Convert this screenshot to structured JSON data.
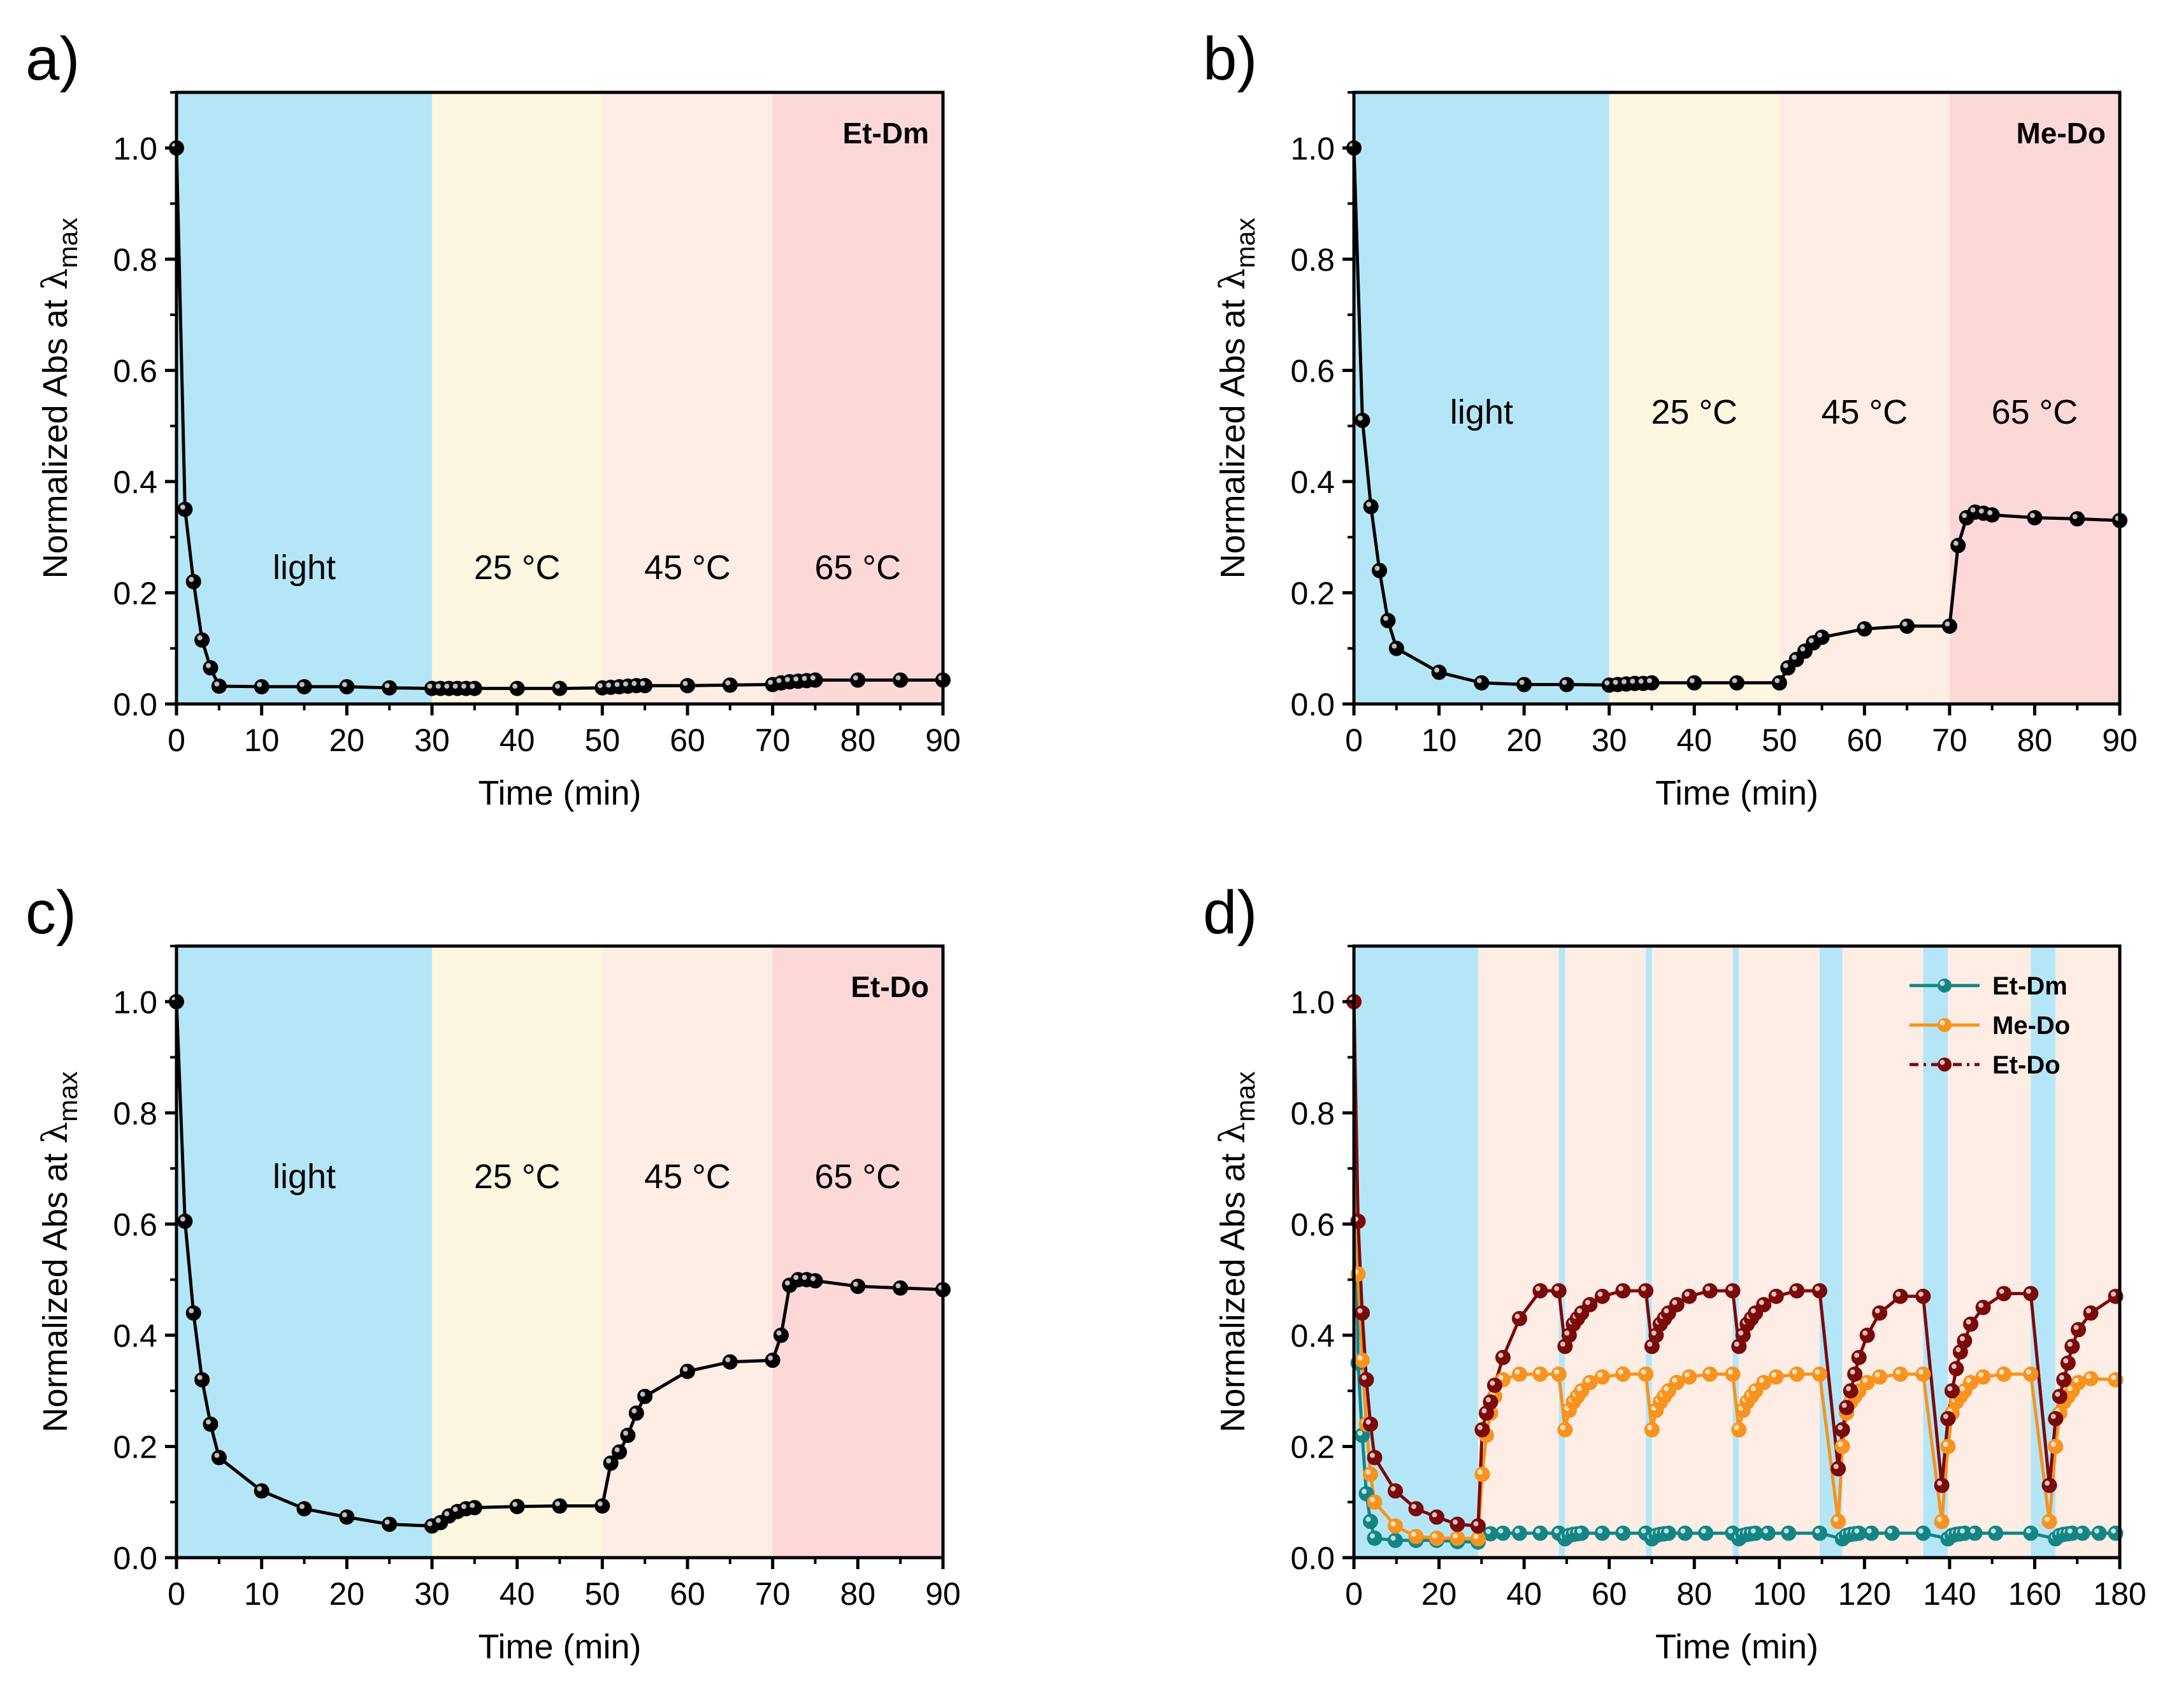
{
  "figure": {
    "xlabel": "Time (min)",
    "ylabel_main": "Normalized Abs at ",
    "ylabel_lambda": "λ",
    "ylabel_sub": "max"
  },
  "colors": {
    "light": "#b5e6f8",
    "t25": "#fdf6e0",
    "t45": "#fdede4",
    "t65": "#fdd8d9",
    "black_series": "#000000",
    "teal": "#138585",
    "orange": "#f7931e",
    "darkred": "#7b0a0a"
  },
  "chart_data": [
    {
      "panel": "a)",
      "type": "line",
      "sample_label": "Et-Dm",
      "xlabel": "Time (min)",
      "xlim": [
        0,
        90
      ],
      "ylim": [
        0,
        1.1
      ],
      "xticks": [
        "0",
        "10",
        "20",
        "30",
        "40",
        "50",
        "60",
        "70",
        "80",
        "90"
      ],
      "yticks": [
        "0.0",
        "0.2",
        "0.4",
        "0.6",
        "0.8",
        "1.0"
      ],
      "regions": [
        {
          "label": "light",
          "x0": 0,
          "x1": 30,
          "color": "light"
        },
        {
          "label": "25 °C",
          "x0": 30,
          "x1": 50,
          "color": "t25"
        },
        {
          "label": "45 °C",
          "x0": 50,
          "x1": 70,
          "color": "t45"
        },
        {
          "label": "65 °C",
          "x0": 70,
          "x1": 90,
          "color": "t65"
        }
      ],
      "region_label_y": 0.245,
      "series": [
        {
          "name": "Et-Dm",
          "color": "black_series",
          "x": [
            0,
            1,
            2,
            3,
            4,
            5,
            10,
            15,
            20,
            25,
            30,
            31,
            32,
            33,
            34,
            35,
            40,
            45,
            50,
            51,
            52,
            53,
            54,
            55,
            60,
            65,
            70,
            71,
            72,
            73,
            74,
            75,
            80,
            85,
            90
          ],
          "y": [
            1.0,
            0.35,
            0.22,
            0.115,
            0.065,
            0.032,
            0.031,
            0.031,
            0.031,
            0.029,
            0.028,
            0.028,
            0.028,
            0.028,
            0.028,
            0.028,
            0.028,
            0.028,
            0.029,
            0.03,
            0.031,
            0.032,
            0.033,
            0.033,
            0.033,
            0.034,
            0.035,
            0.038,
            0.04,
            0.041,
            0.042,
            0.043,
            0.043,
            0.043,
            0.043
          ]
        }
      ]
    },
    {
      "panel": "b)",
      "type": "line",
      "sample_label": "Me-Do",
      "xlabel": "Time (min)",
      "xlim": [
        0,
        90
      ],
      "ylim": [
        0,
        1.1
      ],
      "xticks": [
        "0",
        "10",
        "20",
        "30",
        "40",
        "50",
        "60",
        "70",
        "80",
        "90"
      ],
      "yticks": [
        "0.0",
        "0.2",
        "0.4",
        "0.6",
        "0.8",
        "1.0"
      ],
      "regions": [
        {
          "label": "light",
          "x0": 0,
          "x1": 30,
          "color": "light"
        },
        {
          "label": "25 °C",
          "x0": 30,
          "x1": 50,
          "color": "t25"
        },
        {
          "label": "45 °C",
          "x0": 50,
          "x1": 70,
          "color": "t45"
        },
        {
          "label": "65 °C",
          "x0": 70,
          "x1": 90,
          "color": "t65"
        }
      ],
      "region_label_y": 0.525,
      "series": [
        {
          "name": "Me-Do",
          "color": "black_series",
          "x": [
            0,
            1,
            2,
            3,
            4,
            5,
            10,
            15,
            20,
            25,
            30,
            31,
            32,
            33,
            34,
            35,
            40,
            45,
            50,
            51,
            52,
            53,
            54,
            55,
            60,
            65,
            70,
            71,
            72,
            73,
            74,
            75,
            80,
            85,
            90
          ],
          "y": [
            1.0,
            0.51,
            0.355,
            0.24,
            0.15,
            0.1,
            0.057,
            0.038,
            0.035,
            0.035,
            0.034,
            0.035,
            0.036,
            0.037,
            0.037,
            0.038,
            0.038,
            0.038,
            0.038,
            0.065,
            0.08,
            0.095,
            0.11,
            0.12,
            0.135,
            0.14,
            0.14,
            0.285,
            0.335,
            0.345,
            0.343,
            0.34,
            0.335,
            0.333,
            0.33
          ]
        }
      ]
    },
    {
      "panel": "c)",
      "type": "line",
      "sample_label": "Et-Do",
      "xlabel": "Time (min)",
      "xlim": [
        0,
        90
      ],
      "ylim": [
        0,
        1.1
      ],
      "xticks": [
        "0",
        "10",
        "20",
        "30",
        "40",
        "50",
        "60",
        "70",
        "80",
        "90"
      ],
      "yticks": [
        "0.0",
        "0.2",
        "0.4",
        "0.6",
        "0.8",
        "1.0"
      ],
      "regions": [
        {
          "label": "light",
          "x0": 0,
          "x1": 30,
          "color": "light"
        },
        {
          "label": "25 °C",
          "x0": 30,
          "x1": 50,
          "color": "t25"
        },
        {
          "label": "45 °C",
          "x0": 50,
          "x1": 70,
          "color": "t45"
        },
        {
          "label": "65 °C",
          "x0": 70,
          "x1": 90,
          "color": "t65"
        }
      ],
      "region_label_y": 0.685,
      "series": [
        {
          "name": "Et-Do",
          "color": "black_series",
          "x": [
            0,
            1,
            2,
            3,
            4,
            5,
            10,
            15,
            20,
            25,
            30,
            31,
            32,
            33,
            34,
            35,
            40,
            45,
            50,
            51,
            52,
            53,
            54,
            55,
            60,
            65,
            70,
            71,
            72,
            73,
            74,
            75,
            80,
            85,
            90
          ],
          "y": [
            1.0,
            0.605,
            0.44,
            0.32,
            0.24,
            0.18,
            0.12,
            0.088,
            0.073,
            0.06,
            0.057,
            0.063,
            0.075,
            0.083,
            0.088,
            0.09,
            0.092,
            0.093,
            0.093,
            0.17,
            0.19,
            0.22,
            0.26,
            0.29,
            0.335,
            0.352,
            0.355,
            0.4,
            0.49,
            0.5,
            0.5,
            0.498,
            0.488,
            0.485,
            0.482
          ]
        }
      ]
    },
    {
      "panel": "d)",
      "type": "line",
      "xlabel": "Time (min)",
      "xlim": [
        0,
        185
      ],
      "ylim": [
        0,
        1.1
      ],
      "xticks": [
        "0",
        "20",
        "40",
        "60",
        "80",
        "100",
        "120",
        "140",
        "160",
        "180"
      ],
      "yticks": [
        "0.0",
        "0.2",
        "0.4",
        "0.6",
        "0.8",
        "1.0"
      ],
      "regions": [
        {
          "x0": 0,
          "x1": 30,
          "color": "light"
        },
        {
          "x0": 30,
          "x1": 49.5,
          "color": "t45"
        },
        {
          "x0": 49.5,
          "x1": 51,
          "color": "light"
        },
        {
          "x0": 51,
          "x1": 70.5,
          "color": "t45"
        },
        {
          "x0": 70.5,
          "x1": 72,
          "color": "light"
        },
        {
          "x0": 72,
          "x1": 91.5,
          "color": "t45"
        },
        {
          "x0": 91.5,
          "x1": 93,
          "color": "light"
        },
        {
          "x0": 93,
          "x1": 112.5,
          "color": "t45"
        },
        {
          "x0": 112.5,
          "x1": 118,
          "color": "light"
        },
        {
          "x0": 118,
          "x1": 137.5,
          "color": "t45"
        },
        {
          "x0": 137.5,
          "x1": 143.5,
          "color": "light"
        },
        {
          "x0": 143.5,
          "x1": 163.5,
          "color": "t45"
        },
        {
          "x0": 163.5,
          "x1": 169.5,
          "color": "light"
        },
        {
          "x0": 169.5,
          "x1": 185,
          "color": "t45"
        }
      ],
      "legend": [
        "Et-Dm",
        "Me-Do",
        "Et-Do"
      ],
      "legend_position": "top-right",
      "series": [
        {
          "name": "Et-Dm",
          "color": "teal",
          "x": [
            0,
            1,
            2,
            3,
            4,
            5,
            10,
            15,
            20,
            25,
            30,
            33,
            36,
            40,
            45,
            49.5,
            51,
            52,
            53,
            54,
            55,
            60,
            65,
            70.5,
            72,
            73,
            74,
            75,
            76,
            80,
            85,
            91.5,
            93,
            94,
            95,
            96,
            97,
            100,
            105,
            112.5,
            118,
            119,
            120,
            121,
            122,
            125,
            130,
            137.5,
            143.5,
            144.5,
            145.5,
            146.5,
            147.5,
            150,
            155,
            163.5,
            169.5,
            170.5,
            171.5,
            172.5,
            173.5,
            176,
            180,
            184
          ],
          "y": [
            1.0,
            0.35,
            0.22,
            0.115,
            0.065,
            0.035,
            0.031,
            0.031,
            0.031,
            0.029,
            0.028,
            0.043,
            0.044,
            0.044,
            0.044,
            0.044,
            0.034,
            0.04,
            0.042,
            0.043,
            0.044,
            0.044,
            0.044,
            0.044,
            0.034,
            0.04,
            0.042,
            0.043,
            0.044,
            0.044,
            0.044,
            0.044,
            0.034,
            0.04,
            0.042,
            0.043,
            0.044,
            0.044,
            0.044,
            0.044,
            0.034,
            0.04,
            0.042,
            0.043,
            0.044,
            0.044,
            0.044,
            0.044,
            0.034,
            0.04,
            0.042,
            0.043,
            0.044,
            0.044,
            0.044,
            0.044,
            0.034,
            0.04,
            0.042,
            0.043,
            0.044,
            0.044,
            0.044,
            0.044
          ]
        },
        {
          "name": "Me-Do",
          "color": "orange",
          "x": [
            0,
            1,
            2,
            3,
            4,
            5,
            10,
            15,
            20,
            25,
            30,
            31,
            32,
            33,
            34,
            36,
            40,
            45,
            49.5,
            51,
            52,
            53,
            54,
            55,
            57,
            60,
            65,
            70.5,
            72,
            73,
            74,
            75,
            76,
            78,
            81,
            86,
            91.5,
            93,
            94,
            95,
            96,
            97,
            99,
            102,
            107,
            112.5,
            117,
            118,
            119,
            120,
            121,
            122,
            124,
            127,
            132,
            137.5,
            142,
            143.5,
            144.5,
            145.5,
            146.5,
            147.5,
            149,
            152,
            157,
            163.5,
            168,
            169.5,
            170.5,
            171.5,
            172.5,
            173.5,
            175,
            178,
            184
          ],
          "y": [
            1.0,
            0.51,
            0.355,
            0.24,
            0.15,
            0.1,
            0.057,
            0.038,
            0.035,
            0.035,
            0.034,
            0.15,
            0.22,
            0.26,
            0.29,
            0.32,
            0.33,
            0.33,
            0.33,
            0.23,
            0.265,
            0.28,
            0.29,
            0.3,
            0.315,
            0.325,
            0.33,
            0.33,
            0.23,
            0.265,
            0.28,
            0.29,
            0.3,
            0.315,
            0.325,
            0.33,
            0.33,
            0.23,
            0.265,
            0.28,
            0.29,
            0.3,
            0.315,
            0.325,
            0.33,
            0.33,
            0.065,
            0.2,
            0.26,
            0.28,
            0.29,
            0.3,
            0.315,
            0.325,
            0.33,
            0.33,
            0.065,
            0.2,
            0.26,
            0.28,
            0.29,
            0.3,
            0.315,
            0.325,
            0.33,
            0.33,
            0.065,
            0.2,
            0.26,
            0.28,
            0.29,
            0.3,
            0.315,
            0.322,
            0.32
          ]
        },
        {
          "name": "Et-Do",
          "color": "darkred",
          "x": [
            0,
            1,
            2,
            3,
            4,
            5,
            10,
            15,
            20,
            25,
            30,
            31,
            32,
            33,
            34,
            36,
            40,
            45,
            49.5,
            51,
            52,
            53,
            54,
            55,
            57,
            60,
            65,
            70.5,
            72,
            73,
            74,
            75,
            76,
            78,
            81,
            86,
            91.5,
            93,
            94,
            95,
            96,
            97,
            99,
            102,
            107,
            112.5,
            117,
            118,
            119,
            120,
            121,
            122,
            124,
            127,
            132,
            137.5,
            142,
            143.5,
            144.5,
            145.5,
            146.5,
            147.5,
            149,
            152,
            157,
            163.5,
            168,
            169.5,
            170.5,
            171.5,
            172.5,
            173.5,
            175,
            178,
            184
          ],
          "y": [
            1.0,
            0.605,
            0.44,
            0.32,
            0.24,
            0.18,
            0.12,
            0.088,
            0.073,
            0.06,
            0.057,
            0.23,
            0.26,
            0.28,
            0.31,
            0.36,
            0.43,
            0.48,
            0.48,
            0.38,
            0.4,
            0.42,
            0.43,
            0.44,
            0.455,
            0.47,
            0.48,
            0.48,
            0.38,
            0.4,
            0.42,
            0.43,
            0.44,
            0.455,
            0.47,
            0.48,
            0.48,
            0.38,
            0.4,
            0.42,
            0.43,
            0.44,
            0.455,
            0.47,
            0.48,
            0.48,
            0.16,
            0.23,
            0.27,
            0.3,
            0.33,
            0.36,
            0.4,
            0.44,
            0.47,
            0.47,
            0.13,
            0.25,
            0.3,
            0.34,
            0.37,
            0.39,
            0.42,
            0.45,
            0.475,
            0.475,
            0.13,
            0.25,
            0.29,
            0.32,
            0.35,
            0.38,
            0.41,
            0.44,
            0.47
          ]
        }
      ]
    }
  ]
}
